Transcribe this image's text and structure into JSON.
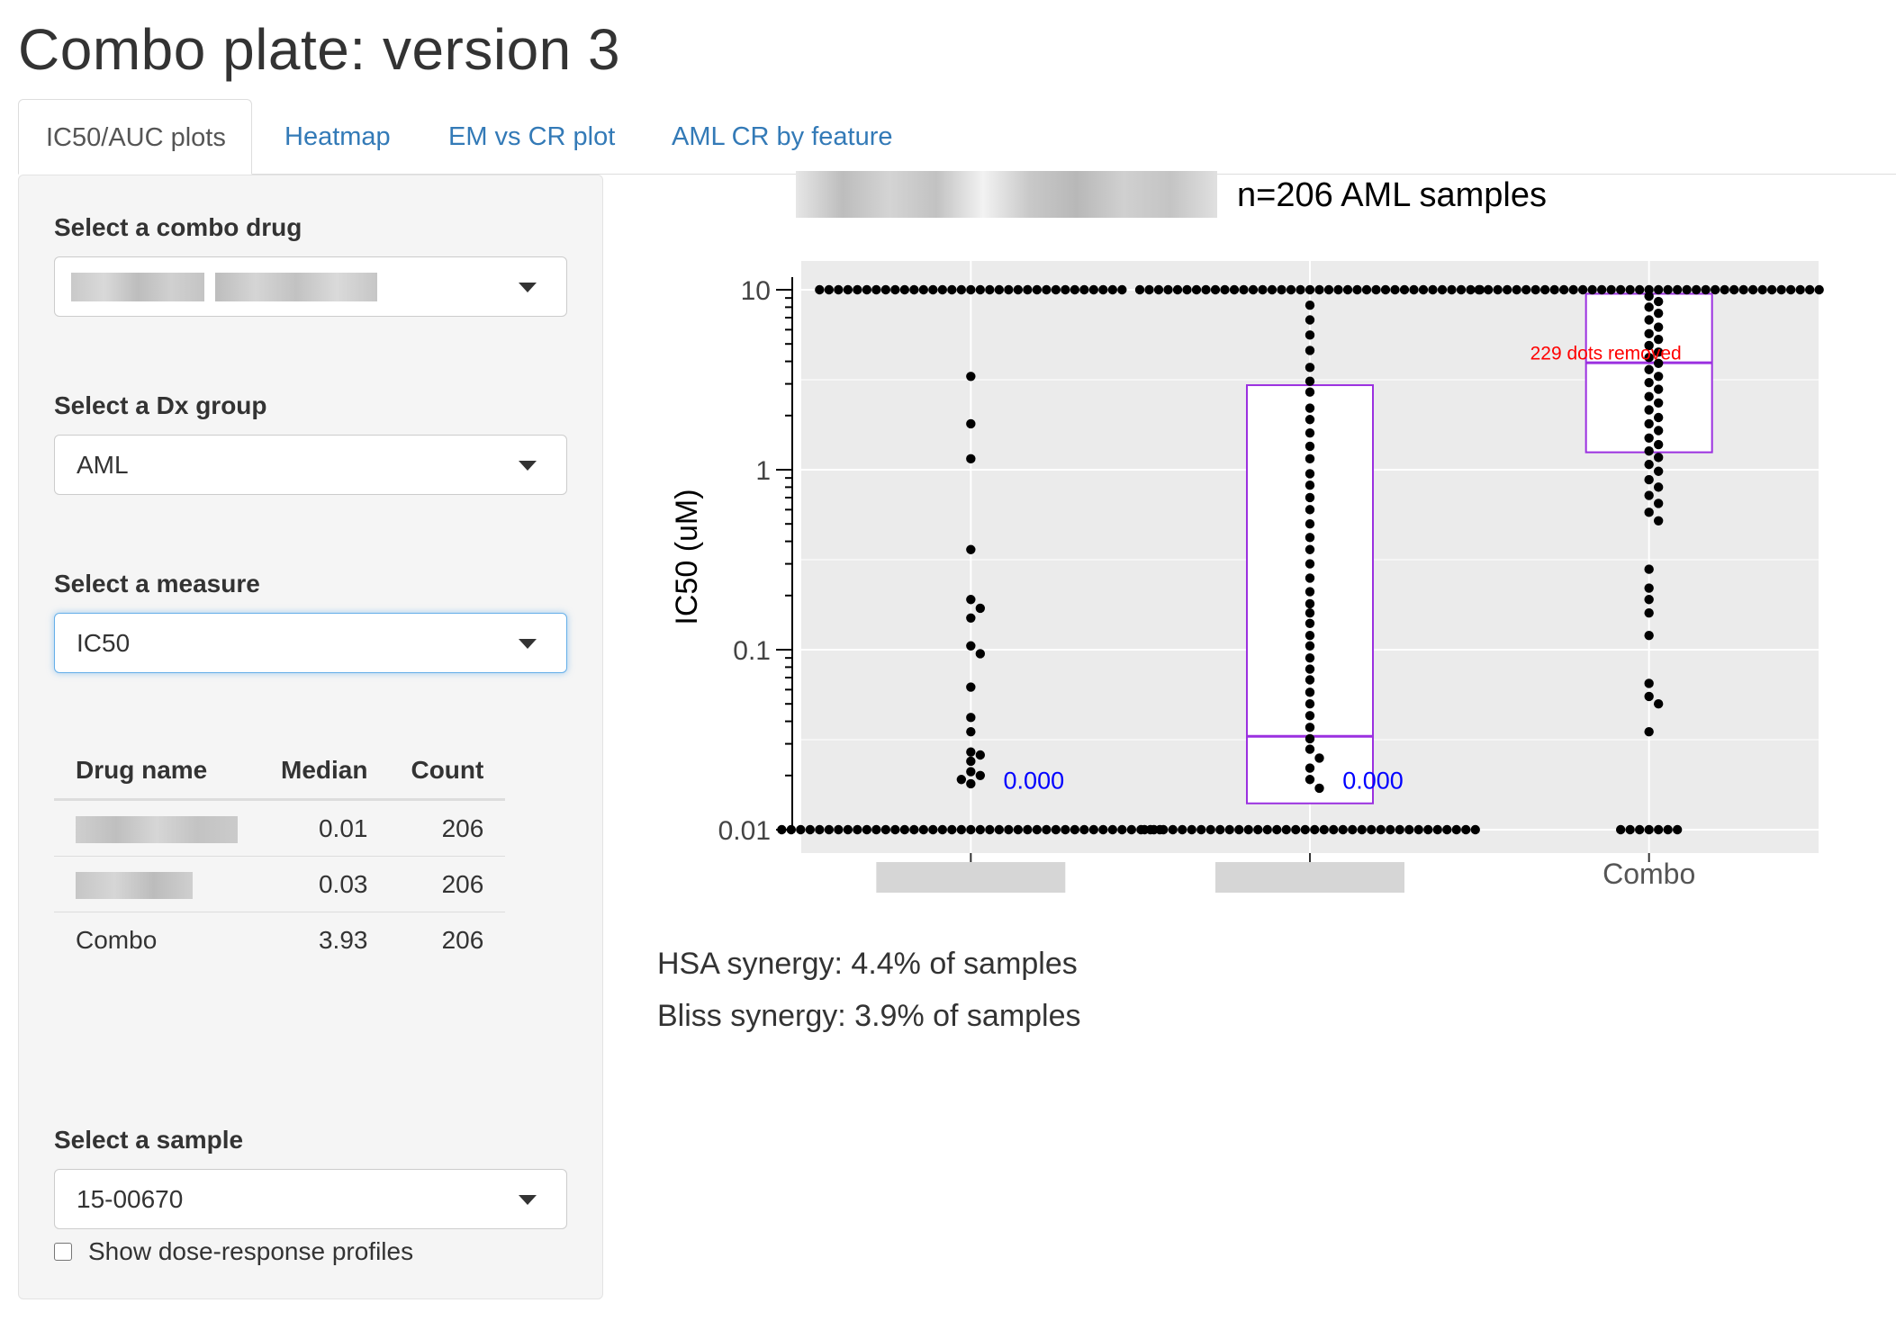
{
  "app": {
    "title": "Combo plate: version 3"
  },
  "tabs": [
    {
      "label": "IC50/AUC plots",
      "active": true
    },
    {
      "label": "Heatmap",
      "active": false
    },
    {
      "label": "EM vs CR plot",
      "active": false
    },
    {
      "label": "AML CR by feature",
      "active": false
    }
  ],
  "sidebar": {
    "combo_drug": {
      "label": "Select a combo drug",
      "value": ""
    },
    "dx_group": {
      "label": "Select a Dx group",
      "value": "AML"
    },
    "measure": {
      "label": "Select a measure",
      "value": "IC50"
    },
    "table": {
      "headers": [
        "Drug name",
        "Median",
        "Count"
      ],
      "rows": [
        {
          "drug": "",
          "median": "0.01",
          "count": "206"
        },
        {
          "drug": "",
          "median": "0.03",
          "count": "206"
        },
        {
          "drug": "Combo",
          "median": "3.93",
          "count": "206"
        }
      ]
    },
    "profiles_checkbox": {
      "label": "Show dose-response profiles",
      "checked": false
    },
    "sample": {
      "label": "Select a sample",
      "value": "15-00670"
    }
  },
  "main": {
    "plot_title": "n=206 AML samples",
    "synergy_hsa": "HSA synergy: 4.4% of samples",
    "synergy_bliss": "Bliss synergy: 3.9% of samples"
  },
  "colors": {
    "panel_bg": "#ebebeb",
    "box": "#9b30e0",
    "point": "#000000",
    "annotation_blue": "#0000ff",
    "annotation_red": "#ff0000",
    "link": "#337ab7"
  },
  "chart_data": {
    "type": "dotplot-boxplot",
    "ylabel": "IC50  (uM)",
    "yscale": "log10",
    "ylim": [
      0.01,
      10
    ],
    "yticks": [
      {
        "value": 10,
        "label": "10"
      },
      {
        "value": 1,
        "label": "1"
      },
      {
        "value": 0.1,
        "label": "0.1"
      },
      {
        "value": 0.01,
        "label": "0.01"
      }
    ],
    "categories": [
      "",
      "",
      "Combo"
    ],
    "groups": [
      {
        "category": "",
        "top_count": 33,
        "bottom_count": 41,
        "mid_values": [
          3.3,
          1.8,
          1.15,
          0.36,
          0.19,
          0.17,
          0.15,
          0.105,
          0.095,
          0.062,
          0.042,
          0.035,
          0.027,
          0.026,
          0.024,
          0.021,
          0.02,
          0.019,
          0.018
        ],
        "box": null,
        "annotation": {
          "text": "0.000",
          "y": 0.0185
        }
      },
      {
        "category": "",
        "top_count": 37,
        "bottom_count": 36,
        "mid_values": [
          8.2,
          6.8,
          5.6,
          4.6,
          3.7,
          3.1,
          2.7,
          2.2,
          1.9,
          1.6,
          1.35,
          1.15,
          0.95,
          0.82,
          0.7,
          0.6,
          0.5,
          0.42,
          0.36,
          0.3,
          0.25,
          0.21,
          0.18,
          0.16,
          0.14,
          0.12,
          0.105,
          0.09,
          0.078,
          0.068,
          0.058,
          0.05,
          0.043,
          0.037,
          0.032,
          0.028,
          0.025,
          0.022,
          0.019,
          0.017
        ],
        "box": {
          "q1": 0.014,
          "median": 0.033,
          "q3": 2.95
        },
        "annotation": {
          "text": "0.000",
          "y": 0.0185
        }
      },
      {
        "category": "Combo",
        "top_count": 37,
        "bottom_count": 7,
        "mid_values": [
          9.2,
          8.6,
          8.0,
          7.4,
          6.8,
          6.2,
          5.7,
          5.3,
          4.9,
          4.5,
          4.2,
          3.9,
          3.6,
          3.3,
          3.05,
          2.8,
          2.55,
          2.35,
          2.15,
          1.95,
          1.8,
          1.65,
          1.5,
          1.38,
          1.27,
          1.17,
          1.07,
          0.98,
          0.88,
          0.8,
          0.72,
          0.65,
          0.58,
          0.52,
          0.28,
          0.22,
          0.19,
          0.16,
          0.12,
          0.065,
          0.055,
          0.05,
          0.035
        ],
        "box": {
          "q1": 1.25,
          "median": 3.93,
          "q3": 9.5
        },
        "annotation": {
          "text": "229 dots removed",
          "y": 4.5
        }
      }
    ]
  }
}
